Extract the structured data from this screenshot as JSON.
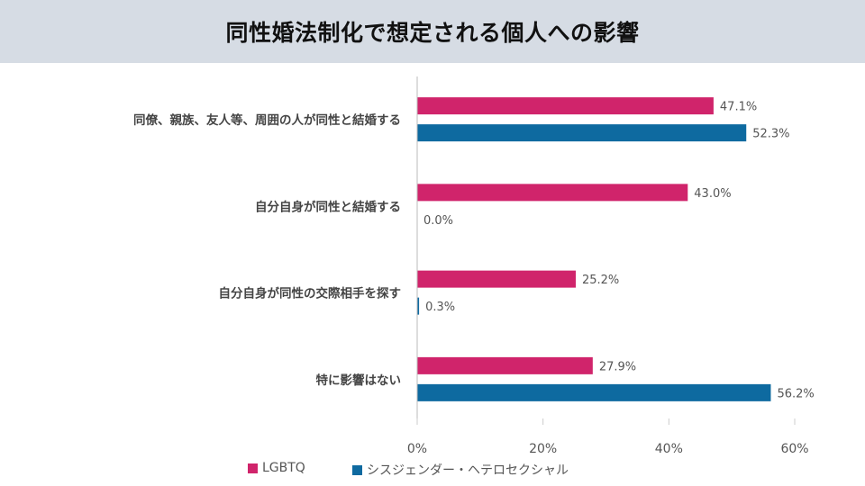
{
  "title": "同性婚法制化で想定される個人への影響",
  "colors": {
    "LGBTQ": "#d0246b",
    "cis_hetero": "#0e6aa0",
    "header_bg": "#d6dce4"
  },
  "chart_data": {
    "type": "bar",
    "orientation": "horizontal",
    "title": "同性婚法制化で想定される個人への影響",
    "categories": [
      "同僚、親族、友人等、周囲の人が同性と結婚する",
      "自分自身が同性と結婚する",
      "自分自身が同性の交際相手を探す",
      "特に影響はない"
    ],
    "series": [
      {
        "name": "LGBTQ",
        "values": [
          47.1,
          43.0,
          25.2,
          27.9
        ],
        "labels": [
          "47.1%",
          "43.0%",
          "25.2%",
          "27.9%"
        ]
      },
      {
        "name": "シスジェンダー・ヘテロセクシャル",
        "values": [
          52.3,
          0.0,
          0.3,
          56.2
        ],
        "labels": [
          "52.3%",
          "0.0%",
          "0.3%",
          "56.2%"
        ]
      }
    ],
    "xlim": [
      0,
      60
    ],
    "xticks": [
      "0%",
      "20%",
      "40%",
      "60%"
    ],
    "grid": false,
    "legend_position": "bottom-left"
  }
}
